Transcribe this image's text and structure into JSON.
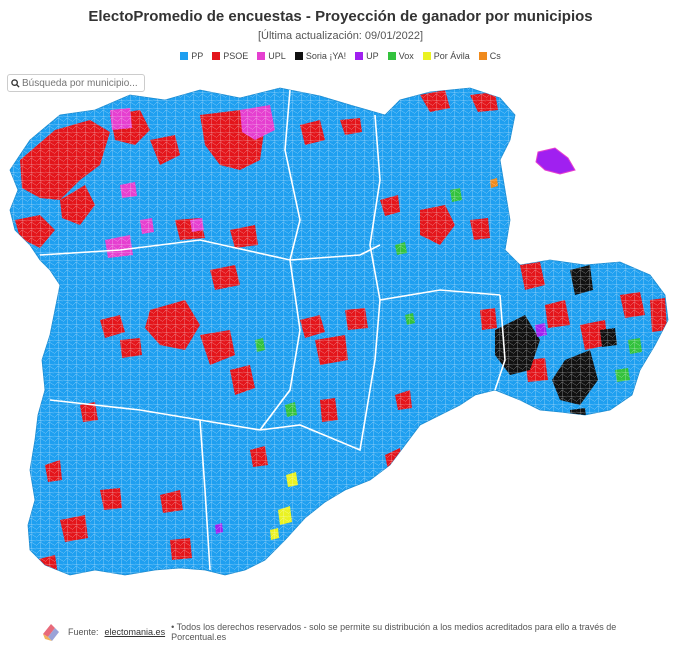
{
  "header": {
    "title": "ElectoPromedio de encuestas - Proyección de ganador por municipios",
    "subtitle": "[Última actualización: 09/01/2022]"
  },
  "legend": [
    {
      "label": "PP",
      "color": "#1e9ff0"
    },
    {
      "label": "PSOE",
      "color": "#e3151b"
    },
    {
      "label": "UPL",
      "color": "#e53fd0"
    },
    {
      "label": "Soria ¡YA!",
      "color": "#111111"
    },
    {
      "label": "UP",
      "color": "#a020f0"
    },
    {
      "label": "Vox",
      "color": "#33c23d"
    },
    {
      "label": "Por Ávila",
      "color": "#eaf222"
    },
    {
      "label": "Cs",
      "color": "#f08a1c"
    }
  ],
  "search": {
    "placeholder": "Búsqueda por municipio..."
  },
  "footer": {
    "prefix": "Fuente:",
    "link": "electomania.es",
    "text": "• Todos los derechos reservados - solo se permite su distribución a los medios acreditados para ello a través de Porcentual.es"
  }
}
